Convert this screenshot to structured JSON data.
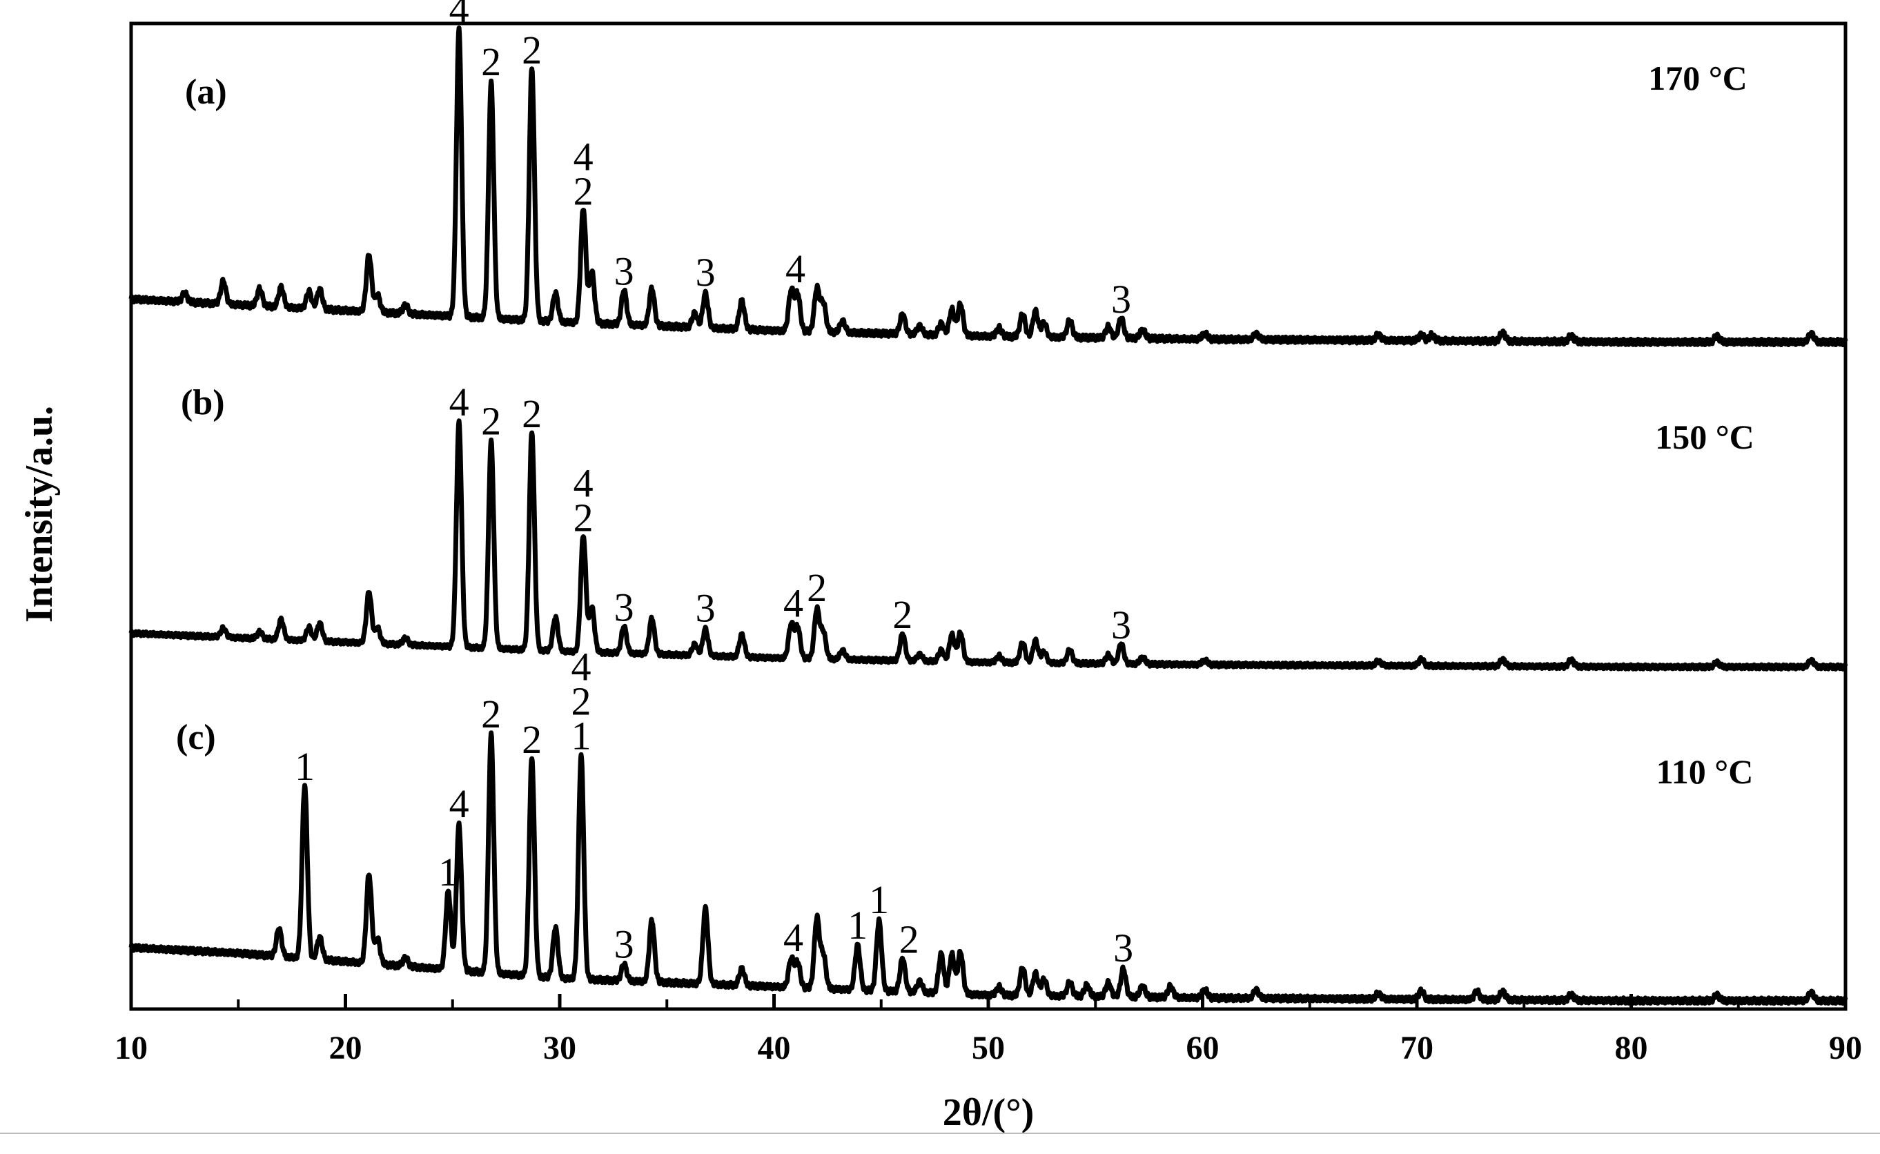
{
  "chart_data": {
    "type": "line",
    "xlabel": "2θ/(°)",
    "ylabel": "Intensity/a.u.",
    "xlim": [
      10,
      90
    ],
    "xticks": [
      10,
      20,
      30,
      40,
      50,
      60,
      70,
      80,
      90
    ],
    "grid": false,
    "series": [
      {
        "panel": "(a)",
        "temperature": "170 °C",
        "baseline": [
          [
            10,
            0.18
          ],
          [
            15,
            0.16
          ],
          [
            20,
            0.14
          ],
          [
            25,
            0.12
          ],
          [
            30,
            0.1
          ],
          [
            40,
            0.07
          ],
          [
            50,
            0.05
          ],
          [
            60,
            0.04
          ],
          [
            70,
            0.035
          ],
          [
            80,
            0.03
          ],
          [
            90,
            0.03
          ]
        ],
        "peaks": [
          [
            12.5,
            0.03
          ],
          [
            14.3,
            0.08
          ],
          [
            16.0,
            0.06
          ],
          [
            17.0,
            0.07
          ],
          [
            18.3,
            0.06
          ],
          [
            18.8,
            0.07
          ],
          [
            21.1,
            0.2
          ],
          [
            21.5,
            0.06
          ],
          [
            22.8,
            0.03
          ],
          [
            25.3,
            1.0
          ],
          [
            26.8,
            0.82
          ],
          [
            28.7,
            0.88
          ],
          [
            29.8,
            0.1
          ],
          [
            31.1,
            0.4
          ],
          [
            31.5,
            0.18
          ],
          [
            33.0,
            0.12
          ],
          [
            34.3,
            0.13
          ],
          [
            36.3,
            0.05
          ],
          [
            36.8,
            0.12
          ],
          [
            38.5,
            0.1
          ],
          [
            40.8,
            0.14
          ],
          [
            41.1,
            0.13
          ],
          [
            42.0,
            0.15
          ],
          [
            42.3,
            0.1
          ],
          [
            43.2,
            0.04
          ],
          [
            46.0,
            0.07
          ],
          [
            46.8,
            0.03
          ],
          [
            47.8,
            0.04
          ],
          [
            48.3,
            0.09
          ],
          [
            48.7,
            0.11
          ],
          [
            50.5,
            0.03
          ],
          [
            51.6,
            0.08
          ],
          [
            52.2,
            0.09
          ],
          [
            52.6,
            0.05
          ],
          [
            53.8,
            0.06
          ],
          [
            55.6,
            0.04
          ],
          [
            56.2,
            0.07
          ],
          [
            57.2,
            0.03
          ],
          [
            60.1,
            0.02
          ],
          [
            62.5,
            0.02
          ],
          [
            68.2,
            0.02
          ],
          [
            70.2,
            0.02
          ],
          [
            70.7,
            0.02
          ],
          [
            74.0,
            0.03
          ],
          [
            77.2,
            0.02
          ],
          [
            84.0,
            0.02
          ],
          [
            88.4,
            0.03
          ]
        ],
        "annotations": [
          {
            "x": 25.3,
            "labels": [
              "4"
            ]
          },
          {
            "x": 26.8,
            "labels": [
              "2"
            ]
          },
          {
            "x": 28.7,
            "labels": [
              "2"
            ]
          },
          {
            "x": 31.1,
            "labels": [
              "4",
              "2"
            ]
          },
          {
            "x": 33.0,
            "labels": [
              "3"
            ]
          },
          {
            "x": 36.8,
            "labels": [
              "3"
            ]
          },
          {
            "x": 41.0,
            "labels": [
              "4"
            ]
          },
          {
            "x": 56.2,
            "labels": [
              "3"
            ]
          }
        ]
      },
      {
        "panel": "(b)",
        "temperature": "150 °C",
        "baseline": [
          [
            10,
            0.18
          ],
          [
            15,
            0.16
          ],
          [
            20,
            0.14
          ],
          [
            25,
            0.12
          ],
          [
            30,
            0.1
          ],
          [
            40,
            0.07
          ],
          [
            50,
            0.05
          ],
          [
            60,
            0.04
          ],
          [
            70,
            0.035
          ],
          [
            80,
            0.03
          ],
          [
            90,
            0.03
          ]
        ],
        "peaks": [
          [
            14.3,
            0.04
          ],
          [
            16.0,
            0.03
          ],
          [
            17.0,
            0.09
          ],
          [
            18.3,
            0.06
          ],
          [
            18.8,
            0.08
          ],
          [
            21.1,
            0.23
          ],
          [
            21.5,
            0.07
          ],
          [
            22.8,
            0.03
          ],
          [
            25.3,
            1.0
          ],
          [
            26.8,
            0.92
          ],
          [
            28.7,
            0.97
          ],
          [
            29.8,
            0.15
          ],
          [
            31.1,
            0.52
          ],
          [
            31.5,
            0.2
          ],
          [
            33.0,
            0.12
          ],
          [
            34.3,
            0.16
          ],
          [
            36.3,
            0.05
          ],
          [
            36.8,
            0.12
          ],
          [
            38.5,
            0.1
          ],
          [
            40.8,
            0.15
          ],
          [
            41.1,
            0.14
          ],
          [
            42.0,
            0.22
          ],
          [
            42.3,
            0.12
          ],
          [
            43.2,
            0.04
          ],
          [
            46.0,
            0.12
          ],
          [
            46.8,
            0.03
          ],
          [
            47.8,
            0.05
          ],
          [
            48.3,
            0.12
          ],
          [
            48.7,
            0.13
          ],
          [
            50.5,
            0.03
          ],
          [
            51.6,
            0.09
          ],
          [
            52.2,
            0.1
          ],
          [
            52.6,
            0.05
          ],
          [
            53.8,
            0.06
          ],
          [
            55.6,
            0.04
          ],
          [
            56.2,
            0.09
          ],
          [
            57.2,
            0.03
          ],
          [
            60.1,
            0.02
          ],
          [
            68.2,
            0.02
          ],
          [
            70.2,
            0.03
          ],
          [
            74.0,
            0.03
          ],
          [
            77.2,
            0.03
          ],
          [
            84.0,
            0.02
          ],
          [
            88.4,
            0.03
          ]
        ],
        "annotations": [
          {
            "x": 25.3,
            "labels": [
              "4"
            ]
          },
          {
            "x": 26.8,
            "labels": [
              "2"
            ]
          },
          {
            "x": 28.7,
            "labels": [
              "2"
            ]
          },
          {
            "x": 31.1,
            "labels": [
              "4",
              "2"
            ]
          },
          {
            "x": 33.0,
            "labels": [
              "3"
            ]
          },
          {
            "x": 36.8,
            "labels": [
              "3"
            ]
          },
          {
            "x": 40.9,
            "labels": [
              "4"
            ]
          },
          {
            "x": 42.0,
            "labels": [
              "2"
            ]
          },
          {
            "x": 46.0,
            "labels": [
              "2"
            ]
          },
          {
            "x": 56.2,
            "labels": [
              "3"
            ]
          }
        ]
      },
      {
        "panel": "(c)",
        "temperature": "110 °C",
        "baseline": [
          [
            10,
            0.22
          ],
          [
            15,
            0.2
          ],
          [
            20,
            0.17
          ],
          [
            25,
            0.14
          ],
          [
            30,
            0.11
          ],
          [
            40,
            0.08
          ],
          [
            50,
            0.05
          ],
          [
            60,
            0.04
          ],
          [
            70,
            0.035
          ],
          [
            80,
            0.03
          ],
          [
            90,
            0.03
          ]
        ],
        "peaks": [
          [
            16.9,
            0.1
          ],
          [
            18.1,
            0.62
          ],
          [
            18.8,
            0.08
          ],
          [
            21.1,
            0.32
          ],
          [
            21.5,
            0.09
          ],
          [
            22.8,
            0.03
          ],
          [
            24.8,
            0.28
          ],
          [
            25.3,
            0.52
          ],
          [
            26.8,
            0.85
          ],
          [
            28.7,
            0.78
          ],
          [
            29.8,
            0.18
          ],
          [
            31.0,
            0.8
          ],
          [
            33.0,
            0.06
          ],
          [
            34.3,
            0.22
          ],
          [
            36.8,
            0.27
          ],
          [
            38.5,
            0.06
          ],
          [
            40.8,
            0.1
          ],
          [
            41.1,
            0.09
          ],
          [
            42.0,
            0.25
          ],
          [
            42.3,
            0.12
          ],
          [
            43.9,
            0.16
          ],
          [
            44.9,
            0.25
          ],
          [
            46.0,
            0.12
          ],
          [
            46.8,
            0.04
          ],
          [
            47.8,
            0.14
          ],
          [
            48.3,
            0.14
          ],
          [
            48.7,
            0.15
          ],
          [
            50.5,
            0.03
          ],
          [
            51.6,
            0.1
          ],
          [
            52.2,
            0.08
          ],
          [
            52.6,
            0.06
          ],
          [
            53.8,
            0.05
          ],
          [
            54.6,
            0.04
          ],
          [
            55.6,
            0.05
          ],
          [
            56.3,
            0.1
          ],
          [
            57.2,
            0.04
          ],
          [
            58.5,
            0.04
          ],
          [
            60.1,
            0.03
          ],
          [
            62.5,
            0.03
          ],
          [
            68.2,
            0.02
          ],
          [
            70.2,
            0.03
          ],
          [
            72.8,
            0.03
          ],
          [
            74.0,
            0.03
          ],
          [
            77.2,
            0.02
          ],
          [
            84.0,
            0.02
          ],
          [
            88.4,
            0.03
          ]
        ],
        "annotations": [
          {
            "x": 18.1,
            "labels": [
              "1"
            ]
          },
          {
            "x": 24.8,
            "labels": [
              "1"
            ]
          },
          {
            "x": 25.3,
            "labels": [
              "4"
            ]
          },
          {
            "x": 26.8,
            "labels": [
              "2"
            ]
          },
          {
            "x": 28.7,
            "labels": [
              "2"
            ]
          },
          {
            "x": 31.0,
            "labels": [
              "4",
              "2",
              "1"
            ]
          },
          {
            "x": 33.0,
            "labels": [
              "3"
            ]
          },
          {
            "x": 40.9,
            "labels": [
              "4"
            ]
          },
          {
            "x": 43.9,
            "labels": [
              "1"
            ]
          },
          {
            "x": 44.9,
            "labels": [
              "1"
            ]
          },
          {
            "x": 46.3,
            "labels": [
              "2"
            ]
          },
          {
            "x": 56.3,
            "labels": [
              "3"
            ]
          }
        ]
      }
    ]
  }
}
